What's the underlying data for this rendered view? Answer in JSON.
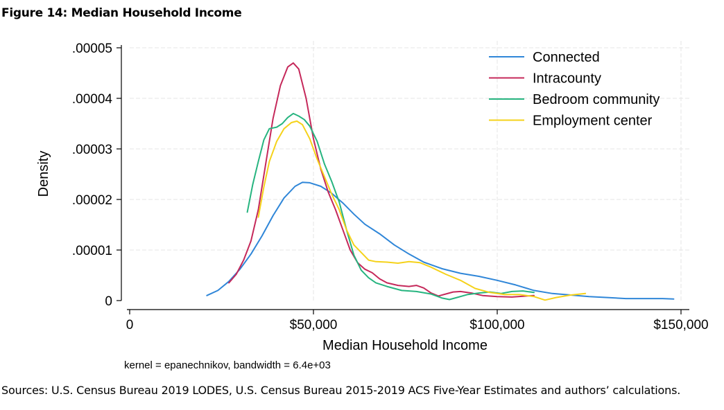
{
  "figure": {
    "title": "Figure 14: Median Household Income",
    "sources": "Sources: U.S. Census Bureau 2019 LODES, U.S. Census Bureau 2015-2019 ACS Five-Year Estimates and authors’ calculations."
  },
  "chart_data": {
    "type": "line",
    "title": "",
    "xlabel": "Median Household Income",
    "ylabel": "Density",
    "note": "kernel = epanechnikov, bandwidth =  6.4e+03",
    "xlim": [
      0,
      150000
    ],
    "ylim": [
      0,
      5e-05
    ],
    "x_ticks": [
      0,
      50000,
      100000,
      150000
    ],
    "x_tick_labels": [
      "0",
      "$50,000",
      "$100,000",
      "$150,000"
    ],
    "y_ticks": [
      0,
      1e-05,
      2e-05,
      3e-05,
      4e-05,
      5e-05
    ],
    "y_tick_labels": [
      "0",
      ".00001",
      ".00002",
      ".00003",
      ".00004",
      ".00005"
    ],
    "grid": true,
    "legend_position": "top-right",
    "series": [
      {
        "name": "Connected",
        "color": "#2f86d8",
        "points": [
          [
            21000,
            1e-06
          ],
          [
            24000,
            2e-06
          ],
          [
            27000,
            3.8e-06
          ],
          [
            30000,
            6.2e-06
          ],
          [
            33000,
            9.2e-06
          ],
          [
            36000,
            1.28e-05
          ],
          [
            39000,
            1.68e-05
          ],
          [
            42000,
            2.03e-05
          ],
          [
            45000,
            2.26e-05
          ],
          [
            47000,
            2.34e-05
          ],
          [
            49000,
            2.33e-05
          ],
          [
            52000,
            2.26e-05
          ],
          [
            55000,
            2.12e-05
          ],
          [
            58000,
            1.93e-05
          ],
          [
            61000,
            1.71e-05
          ],
          [
            64000,
            1.51e-05
          ],
          [
            68000,
            1.32e-05
          ],
          [
            72000,
            1.1e-05
          ],
          [
            76000,
            9.2e-06
          ],
          [
            80000,
            7.6e-06
          ],
          [
            85000,
            6.3e-06
          ],
          [
            90000,
            5.4e-06
          ],
          [
            95000,
            4.8e-06
          ],
          [
            100000,
            4e-06
          ],
          [
            105000,
            3.1e-06
          ],
          [
            110000,
            2e-06
          ],
          [
            115000,
            1.4e-06
          ],
          [
            120000,
            1.1e-06
          ],
          [
            125000,
            8e-07
          ],
          [
            130000,
            6e-07
          ],
          [
            135000,
            4e-07
          ],
          [
            140000,
            4e-07
          ],
          [
            145000,
            4e-07
          ],
          [
            148000,
            3e-07
          ]
        ]
      },
      {
        "name": "Intracounty",
        "color": "#c5285a",
        "points": [
          [
            27000,
            3.5e-06
          ],
          [
            29000,
            5.2e-06
          ],
          [
            31000,
            8e-06
          ],
          [
            33000,
            1.18e-05
          ],
          [
            35000,
            1.8e-05
          ],
          [
            37000,
            2.7e-05
          ],
          [
            39000,
            3.6e-05
          ],
          [
            41000,
            4.25e-05
          ],
          [
            43000,
            4.62e-05
          ],
          [
            44500,
            4.7e-05
          ],
          [
            46000,
            4.58e-05
          ],
          [
            48000,
            4e-05
          ],
          [
            50000,
            3.2e-05
          ],
          [
            52000,
            2.6e-05
          ],
          [
            54000,
            2.15e-05
          ],
          [
            56000,
            1.8e-05
          ],
          [
            58000,
            1.4e-05
          ],
          [
            60000,
            1e-05
          ],
          [
            62000,
            7.5e-06
          ],
          [
            64000,
            6.2e-06
          ],
          [
            66000,
            5.5e-06
          ],
          [
            68000,
            4.3e-06
          ],
          [
            70000,
            3.5e-06
          ],
          [
            73000,
            3e-06
          ],
          [
            76000,
            2.8e-06
          ],
          [
            78000,
            3e-06
          ],
          [
            80000,
            2.5e-06
          ],
          [
            82000,
            1.5e-06
          ],
          [
            84000,
            9e-07
          ],
          [
            86000,
            1.3e-06
          ],
          [
            88000,
            1.7e-06
          ],
          [
            90000,
            1.8e-06
          ],
          [
            93000,
            1.5e-06
          ],
          [
            96000,
            1e-06
          ],
          [
            100000,
            8e-07
          ],
          [
            104000,
            7e-07
          ],
          [
            108000,
            9e-07
          ],
          [
            110000,
            1e-06
          ]
        ]
      },
      {
        "name": "Bedroom community",
        "color": "#26b47f",
        "points": [
          [
            32000,
            1.75e-05
          ],
          [
            33500,
            2.3e-05
          ],
          [
            35000,
            2.75e-05
          ],
          [
            36500,
            3.18e-05
          ],
          [
            38000,
            3.4e-05
          ],
          [
            40000,
            3.43e-05
          ],
          [
            41500,
            3.5e-05
          ],
          [
            43000,
            3.62e-05
          ],
          [
            44500,
            3.7e-05
          ],
          [
            46000,
            3.65e-05
          ],
          [
            47500,
            3.58e-05
          ],
          [
            49000,
            3.45e-05
          ],
          [
            51000,
            3.15e-05
          ],
          [
            53000,
            2.7e-05
          ],
          [
            55000,
            2.35e-05
          ],
          [
            57000,
            1.95e-05
          ],
          [
            59000,
            1.4e-05
          ],
          [
            61000,
            9e-06
          ],
          [
            63000,
            6e-06
          ],
          [
            65000,
            4.5e-06
          ],
          [
            67000,
            3.5e-06
          ],
          [
            70000,
            2.8e-06
          ],
          [
            74000,
            2e-06
          ],
          [
            78000,
            1.8e-06
          ],
          [
            82000,
            1.3e-06
          ],
          [
            85000,
            5e-07
          ],
          [
            87000,
            2e-07
          ],
          [
            89000,
            6e-07
          ],
          [
            92000,
            1.2e-06
          ],
          [
            95000,
            1.5e-06
          ],
          [
            98000,
            1.7e-06
          ],
          [
            101000,
            1.4e-06
          ],
          [
            104000,
            1.8e-06
          ],
          [
            107000,
            1.9e-06
          ],
          [
            110000,
            1.6e-06
          ]
        ]
      },
      {
        "name": "Employment center",
        "color": "#f5d21a",
        "points": [
          [
            35000,
            1.65e-05
          ],
          [
            36500,
            2.25e-05
          ],
          [
            38000,
            2.75e-05
          ],
          [
            40000,
            3.15e-05
          ],
          [
            42000,
            3.4e-05
          ],
          [
            44000,
            3.52e-05
          ],
          [
            45500,
            3.55e-05
          ],
          [
            47000,
            3.48e-05
          ],
          [
            49000,
            3.2e-05
          ],
          [
            51000,
            2.8e-05
          ],
          [
            53000,
            2.45e-05
          ],
          [
            55000,
            2.1e-05
          ],
          [
            57000,
            1.8e-05
          ],
          [
            59000,
            1.4e-05
          ],
          [
            61000,
            1.1e-05
          ],
          [
            63000,
            9.5e-06
          ],
          [
            65000,
            8e-06
          ],
          [
            67000,
            7.7e-06
          ],
          [
            70000,
            7.6e-06
          ],
          [
            73000,
            7.4e-06
          ],
          [
            76000,
            7.7e-06
          ],
          [
            79000,
            7.5e-06
          ],
          [
            82000,
            6.6e-06
          ],
          [
            86000,
            5.2e-06
          ],
          [
            90000,
            4e-06
          ],
          [
            94000,
            2.4e-06
          ],
          [
            98000,
            1.6e-06
          ],
          [
            102000,
            1.2e-06
          ],
          [
            106000,
            1.2e-06
          ],
          [
            110000,
            8e-07
          ],
          [
            113000,
            1e-07
          ],
          [
            116000,
            6e-07
          ],
          [
            120000,
            1.1e-06
          ],
          [
            124000,
            1.4e-06
          ]
        ]
      }
    ]
  }
}
